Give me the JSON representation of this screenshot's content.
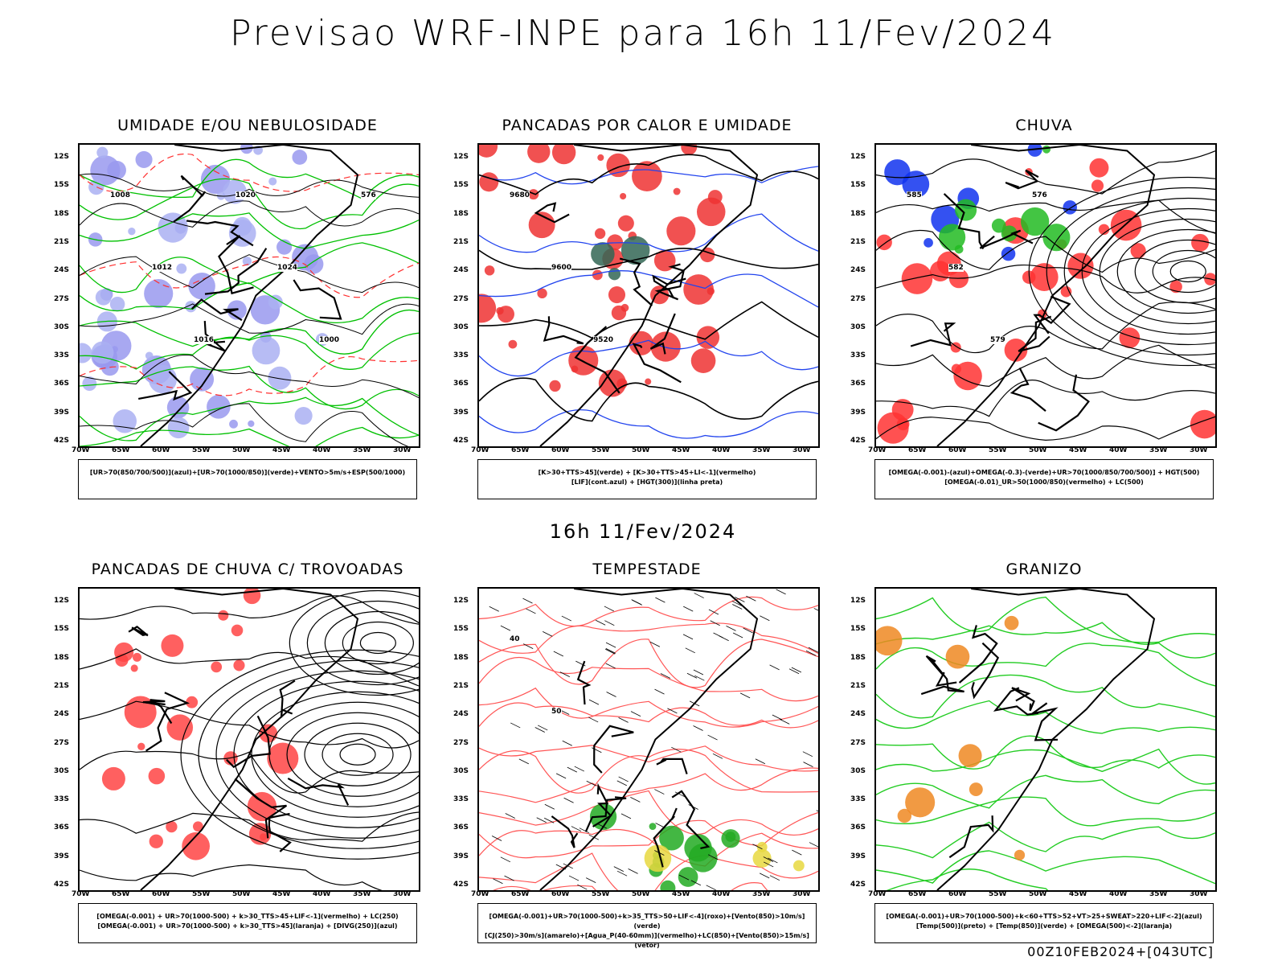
{
  "title": "Previsao WRF-INPE  para 16h 11/Fev/2024",
  "mid_title": "16h 11/Fev/2024",
  "footer": "00Z10FEB2024+[043UTC]",
  "lat_ticks": [
    "12S",
    "15S",
    "18S",
    "21S",
    "24S",
    "27S",
    "30S",
    "33S",
    "36S",
    "39S",
    "42S"
  ],
  "lon_ticks": [
    "70W",
    "65W",
    "60W",
    "55W",
    "50W",
    "45W",
    "40W",
    "35W",
    "30W"
  ],
  "panels": [
    {
      "title": "UMIDADE E/OU NEBULOSIDADE",
      "legend": [
        "[UR>70(850/700/500)](azul)+[UR>70(1000/850)](verde)+VENTO>5m/s+ESP(500/1000)"
      ],
      "contour_labels": [
        "1008",
        "1012",
        "1016",
        "1020",
        "1024",
        "1000",
        "576"
      ]
    },
    {
      "title": "PANCADAS POR CALOR E UMIDADE",
      "legend": [
        "[K>30+TTS>45](verde) + [K>30+TTS>45+LI<-1](vermelho)",
        "[LIF](cont.azul) + [HGT(300)](linha preta)"
      ],
      "contour_labels": [
        "9680",
        "9600",
        "9520"
      ]
    },
    {
      "title": "CHUVA",
      "legend": [
        "[OMEGA(-0.001)-(azul)+OMEGA(-0.3)-(verde)+UR>70(1000/850/700/500)] + HGT(500)",
        "[OMEGA(-0.01)_UR>50(1000/850)(vermelho) + LC(500)"
      ],
      "contour_labels": [
        "585",
        "582",
        "579",
        "576"
      ]
    },
    {
      "title": "PANCADAS DE CHUVA C/ TROVOADAS",
      "legend": [
        "[OMEGA(-0.001) + UR>70(1000-500) + k>30_TTS>45+LIF<-1](vermelho) + LC(250)",
        "[OMEGA(-0.001) + UR>70(1000-500) + k>30_TTS>45](laranja) + [DIVG(250)](azul)"
      ],
      "contour_labels": []
    },
    {
      "title": "TEMPESTADE",
      "legend": [
        "[OMEGA(-0.001)+UR>70(1000-500)+k>35_TTS>50+LIF<-4](roxo)+[Vento(850)>10m/s](verde)",
        "[CJ(250)>30m/s](amarelo)+[Agua_P(40-60mm)](vermelho)+LC(850)+[Vento(850)>15m/s](vetor)"
      ],
      "contour_labels": [
        "40",
        "50"
      ]
    },
    {
      "title": "GRANIZO",
      "legend": [
        "[OMEGA(-0.001)+UR>70(1000-500)+k<60+TTS>52+VT>25+SWEAT>220+LIF<-2](azul)",
        "[Temp(500)](preto) + [Temp(850)](verde) + [OMEGA(500)<-2](laranja)"
      ],
      "contour_labels": []
    }
  ]
}
